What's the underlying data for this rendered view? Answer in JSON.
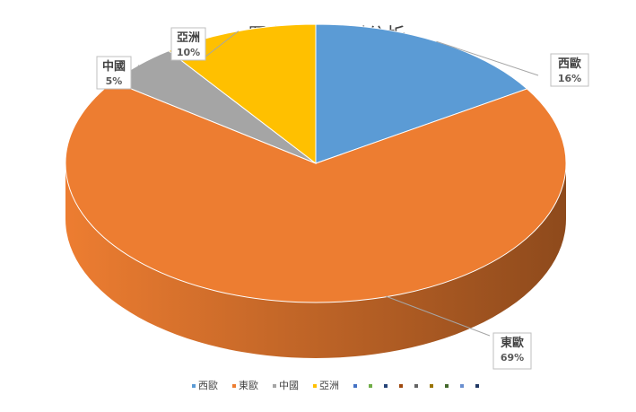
{
  "chart_data": {
    "type": "pie",
    "title": "買主來源國別分析",
    "slices": [
      {
        "name": "西歐",
        "value": 16,
        "label": "16%",
        "color": "#5B9BD5",
        "side_color": "#2E5E8C"
      },
      {
        "name": "東歐",
        "value": 69,
        "label": "69%",
        "color": "#ED7D31",
        "side_color": "#8E4A1C"
      },
      {
        "name": "中國",
        "value": 5,
        "label": "5%",
        "color": "#A5A5A5",
        "side_color": "#6B6B6B"
      },
      {
        "name": "亞洲",
        "value": 10,
        "label": "10%",
        "color": "#FFC000",
        "side_color": "#A67C00"
      }
    ],
    "legend": {
      "placement": "bottom",
      "entries": [
        "西歐",
        "東歐",
        "中國",
        "亞洲"
      ],
      "empty_marker_colors": [
        "#4472C4",
        "#70AD47",
        "#264478",
        "#9E480E",
        "#636363",
        "#997300",
        "#43682B",
        "#698ED0",
        "#203864"
      ]
    }
  }
}
